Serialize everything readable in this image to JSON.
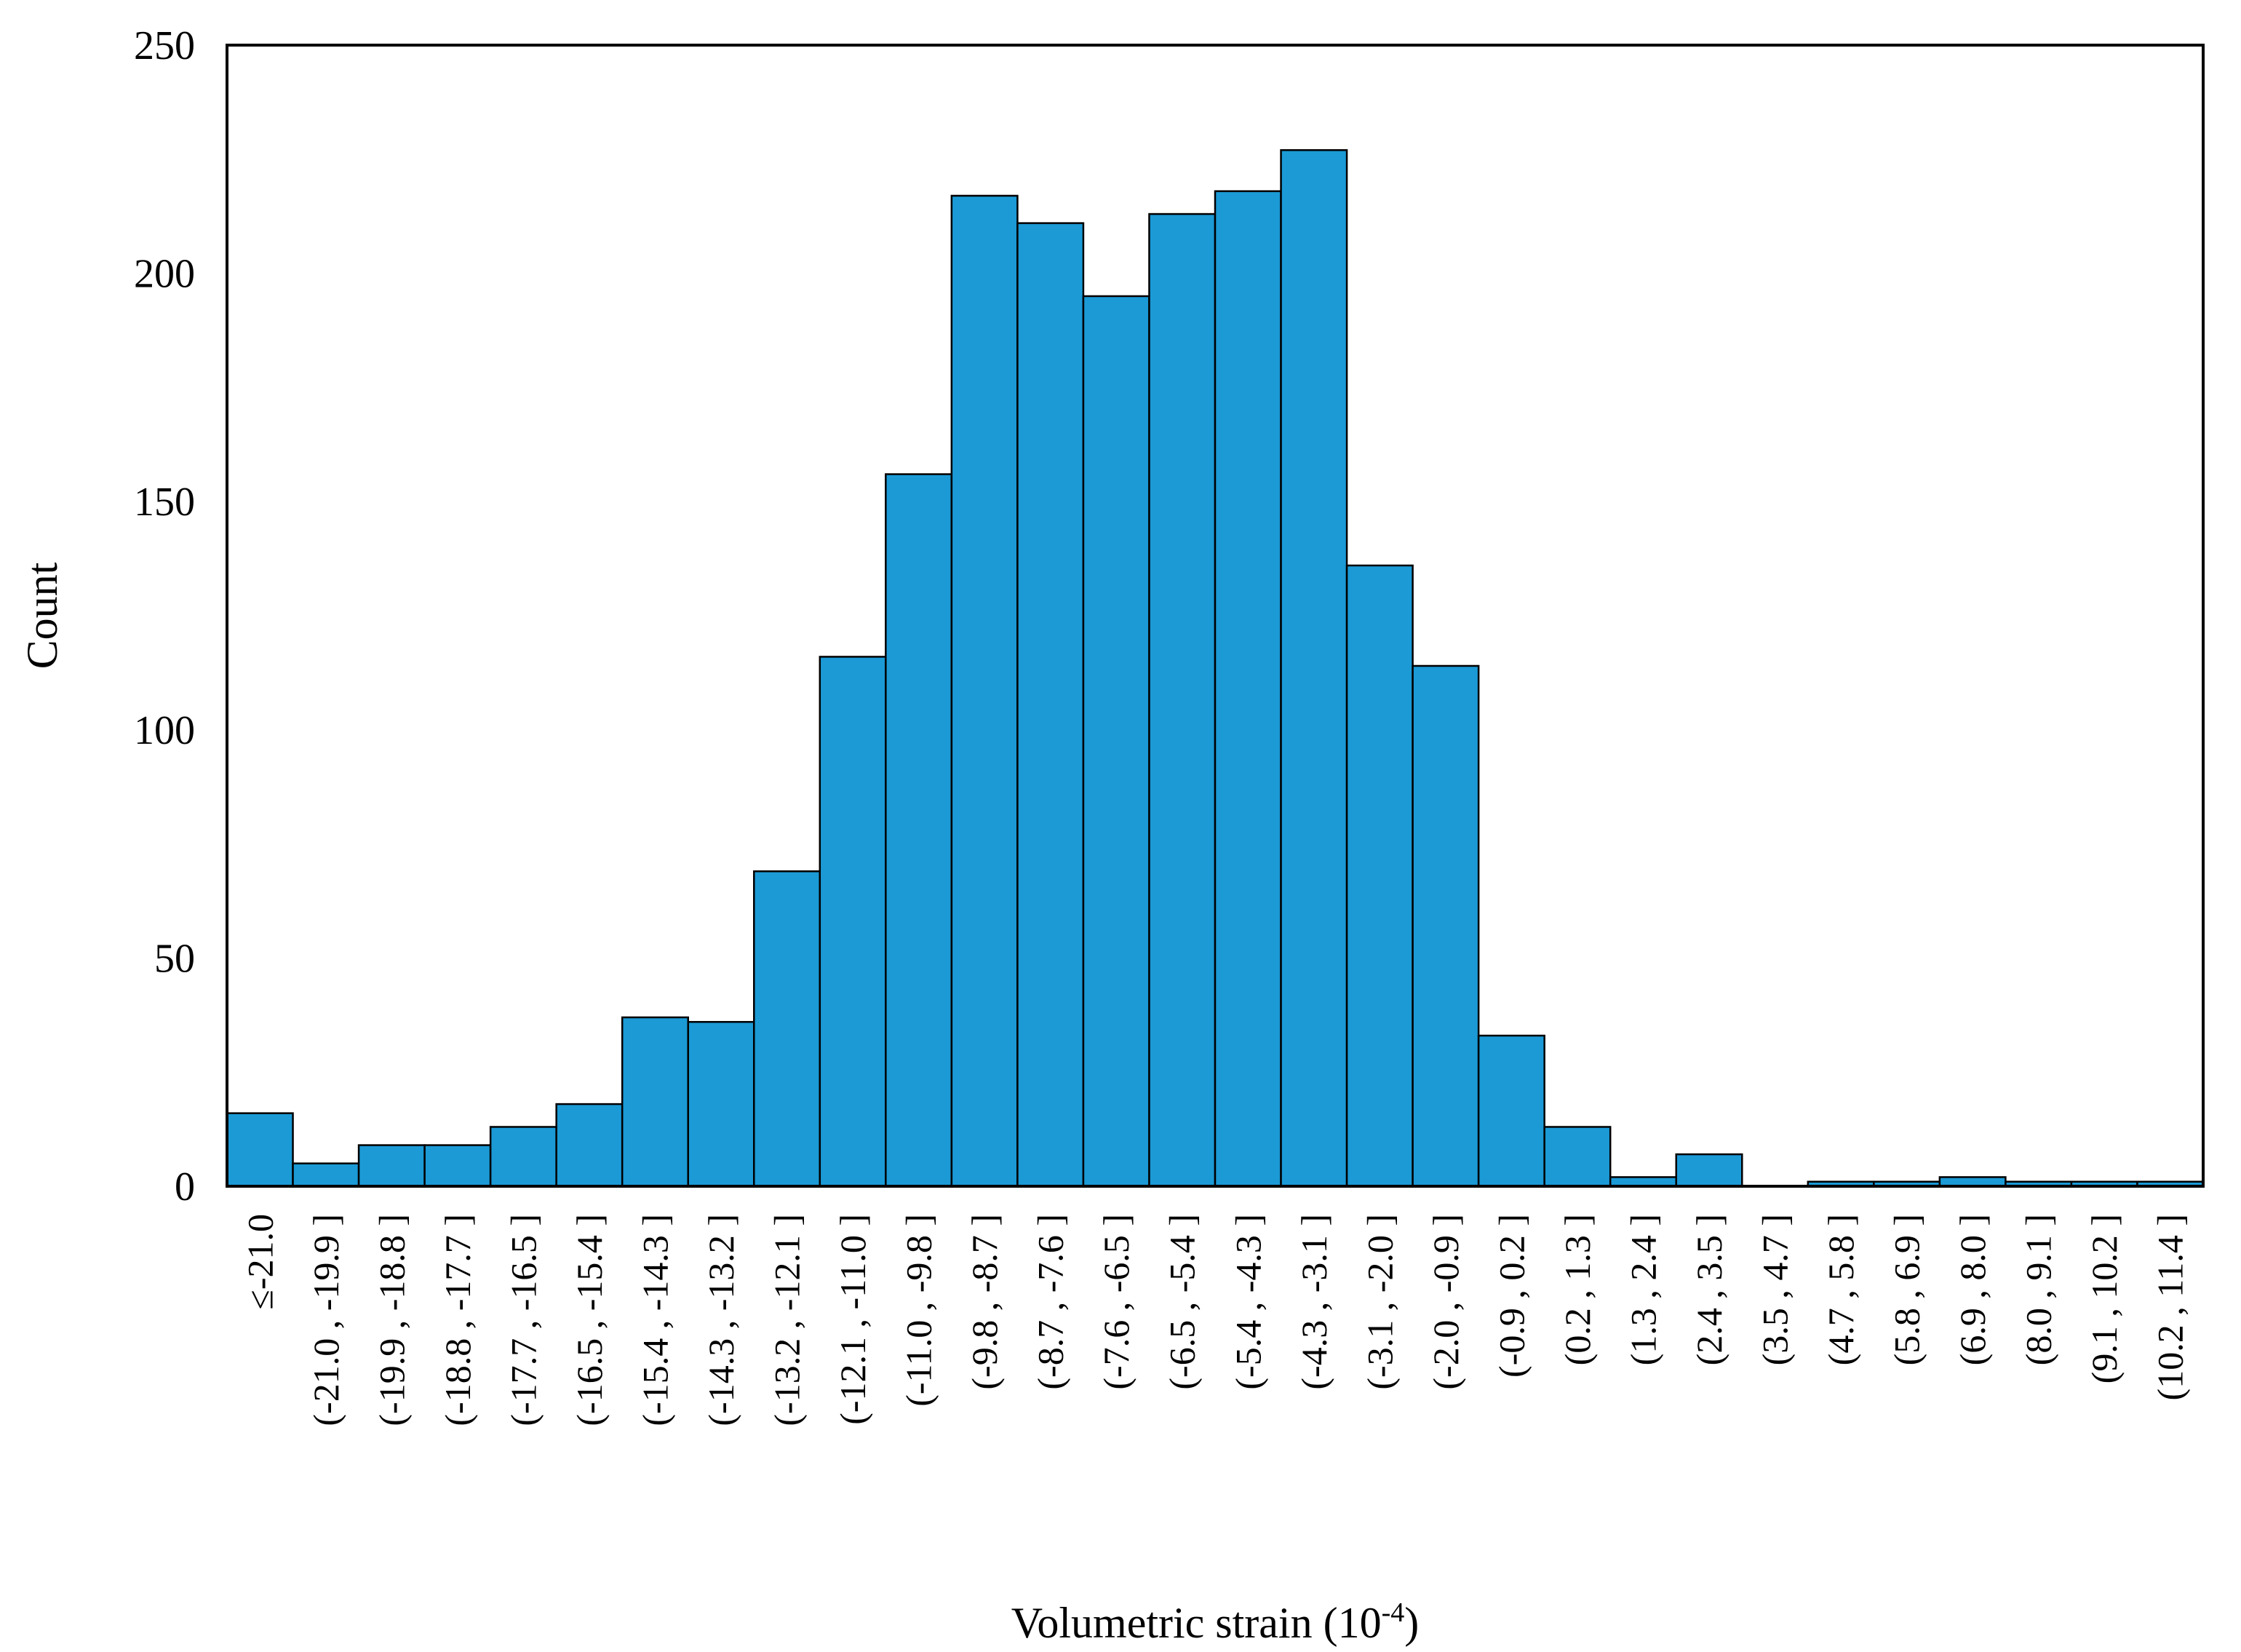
{
  "chart_data": {
    "type": "bar",
    "title": "",
    "xlabel": "Volumetric strain (10",
    "xlabel_exponent": "-4",
    "xlabel_suffix": ")",
    "ylabel": "Count",
    "ylim": [
      0,
      250
    ],
    "yticks": [
      "0",
      "50",
      "100",
      "150",
      "200",
      "250"
    ],
    "grid": false,
    "bar_color": "#1b9ad6",
    "categories": [
      "≤-21.0",
      "(-21.0 , -19.9 ]",
      "(-19.9 , -18.8 ]",
      "(-18.8 , -17.7 ]",
      "(-17.7 , -16.5 ]",
      "(-16.5 , -15.4 ]",
      "(-15.4 , -14.3 ]",
      "(-14.3 , -13.2 ]",
      "(-13.2 , -12.1 ]",
      "(-12.1 , -11.0 ]",
      "(-11.0 , -9.8 ]",
      "(-9.8 , -8.7 ]",
      "(-8.7 , -7.6 ]",
      "(-7.6 , -6.5 ]",
      "(-6.5 , -5.4 ]",
      "(-5.4 , -4.3 ]",
      "(-4.3 , -3.1 ]",
      "(-3.1 , -2.0 ]",
      "(-2.0 , -0.9 ]",
      "(-0.9 , 0.2 ]",
      "(0.2 , 1.3 ]",
      "(1.3 , 2.4 ]",
      "(2.4 , 3.5 ]",
      "(3.5 , 4.7 ]",
      "(4.7 , 5.8 ]",
      "(5.8 , 6.9 ]",
      "(6.9 , 8.0 ]",
      "(8.0 , 9.1 ]",
      "(9.1 , 10.2 ]",
      "(10.2 , 11.4 ]"
    ],
    "values": [
      16,
      5,
      9,
      9,
      13,
      18,
      37,
      36,
      69,
      116,
      156,
      217,
      211,
      195,
      213,
      218,
      227,
      136,
      114,
      33,
      13,
      2,
      7,
      0,
      1,
      1,
      2,
      1,
      1,
      1
    ]
  }
}
